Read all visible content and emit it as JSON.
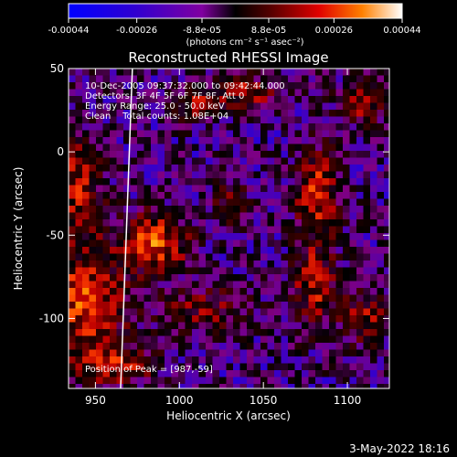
{
  "colorbar": {
    "tick_labels": [
      "-0.00044",
      "-0.00026",
      "-8.8e-05",
      "8.8e-05",
      "0.00026",
      "0.00044"
    ],
    "tick_values": [
      -0.00044,
      -0.00026,
      -8.8e-05,
      8.8e-05,
      0.00026,
      0.00044
    ],
    "range": [
      -0.00044,
      0.00044
    ],
    "units_label": "(photons cm⁻² s⁻¹ asec⁻²)"
  },
  "chart_data": {
    "type": "heatmap",
    "title": "Reconstructed RHESSI Image",
    "xlabel": "Heliocentric X (arcsec)",
    "ylabel": "Heliocentric Y (arcsec)",
    "xlim": [
      934,
      1125
    ],
    "ylim": [
      -142,
      50
    ],
    "xticks": [
      950,
      1000,
      1050,
      1100
    ],
    "yticks": [
      50,
      0,
      -50,
      -100
    ],
    "annotations": [
      "10-Dec-2005 09:37:32.000 to 09:42:44.000",
      "Detectors: 3F 4F 5F 6F 7F 8F, Att 0",
      "Energy Range: 25.0 - 50.0 keV",
      "Clean    Total counts: 1.08E+04"
    ],
    "peak_label": "Position of Peak = [987,-59]",
    "limb_line": [
      [
        965,
        -142
      ],
      [
        972,
        50
      ]
    ],
    "colormap": [
      "#0000ff",
      "#4000c0",
      "#800080",
      "#000000",
      "#400000",
      "#c00000",
      "#ff4000",
      "#ffa000",
      "#ffff80"
    ],
    "hot_regions": [
      {
        "x": 985,
        "y": -55,
        "sx": 14,
        "sy": 12,
        "v": 0.00044
      },
      {
        "x": 945,
        "y": -90,
        "sx": 16,
        "sy": 22,
        "v": 0.0004
      },
      {
        "x": 940,
        "y": -20,
        "sx": 10,
        "sy": 22,
        "v": 0.0003
      },
      {
        "x": 1082,
        "y": -25,
        "sx": 9,
        "sy": 18,
        "v": 0.00038
      },
      {
        "x": 1080,
        "y": -80,
        "sx": 9,
        "sy": 18,
        "v": 0.0003
      },
      {
        "x": 1110,
        "y": -100,
        "sx": 10,
        "sy": 12,
        "v": 0.00026
      },
      {
        "x": 1040,
        "y": 35,
        "sx": 14,
        "sy": 8,
        "v": 0.00026
      },
      {
        "x": 1010,
        "y": 30,
        "sx": 10,
        "sy": 8,
        "v": 0.00022
      },
      {
        "x": 1015,
        "y": -95,
        "sx": 20,
        "sy": 10,
        "v": 0.00022
      },
      {
        "x": 960,
        "y": -128,
        "sx": 18,
        "sy": 8,
        "v": 0.0003
      },
      {
        "x": 1110,
        "y": 30,
        "sx": 10,
        "sy": 10,
        "v": 0.00026
      },
      {
        "x": 1030,
        "y": -30,
        "sx": 8,
        "sy": 10,
        "v": 0.00018
      }
    ]
  },
  "footer": {
    "date": "3-May-2022 18:16"
  }
}
